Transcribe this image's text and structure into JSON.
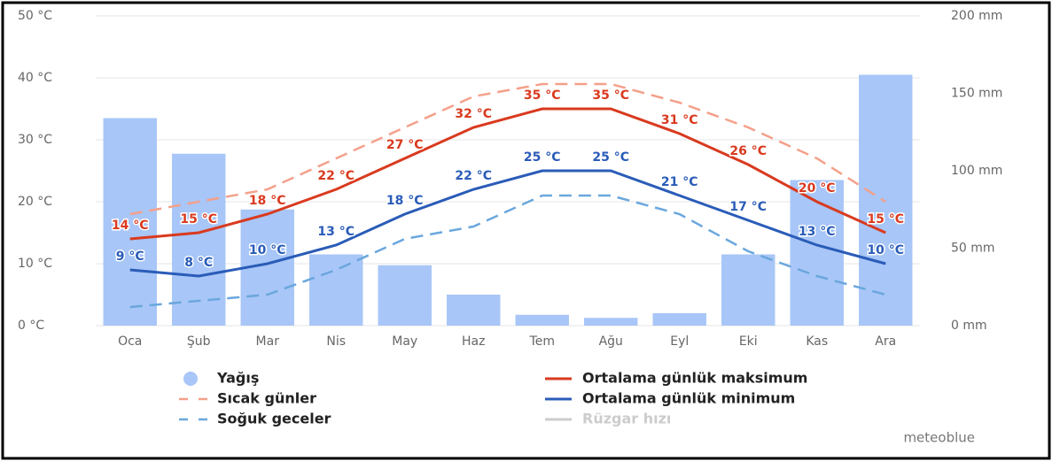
{
  "chart_data": {
    "type": "bar_line",
    "categories": [
      "Oca",
      "Şub",
      "Mar",
      "Nis",
      "May",
      "Haz",
      "Tem",
      "Ağu",
      "Eyl",
      "Eki",
      "Kas",
      "Ara"
    ],
    "ylim": [
      0,
      50
    ],
    "yticks": [
      {
        "value": 0,
        "label": "0 °C"
      },
      {
        "value": 10,
        "label": "10 °C"
      },
      {
        "value": 20,
        "label": "20 °C"
      },
      {
        "value": 30,
        "label": "30 °C"
      },
      {
        "value": 40,
        "label": "40 °C"
      },
      {
        "value": 50,
        "label": "50 °C"
      }
    ],
    "y2lim": [
      0,
      200
    ],
    "y2ticks": [
      {
        "value": 0,
        "label": "0 mm"
      },
      {
        "value": 50,
        "label": "50 mm"
      },
      {
        "value": 100,
        "label": "100 mm"
      },
      {
        "value": 150,
        "label": "150 mm"
      },
      {
        "value": 200,
        "label": "200 mm"
      }
    ],
    "grid": true,
    "series": [
      {
        "name": "Yağış",
        "kind": "bar",
        "axis": "y2",
        "color": "#a8c6f7",
        "values": [
          134,
          111,
          75,
          46,
          39,
          20,
          7,
          5,
          8,
          46,
          94,
          162
        ]
      },
      {
        "name": "Sıcak günler",
        "kind": "dashed",
        "color": "#f4a08a",
        "values": [
          18,
          20,
          22,
          27,
          32,
          37,
          39,
          39,
          36,
          32,
          27,
          20
        ]
      },
      {
        "name": "Soğuk geceler",
        "kind": "dashed",
        "color": "#6aa7dd",
        "values": [
          3,
          4,
          5,
          9,
          14,
          16,
          21,
          21,
          18,
          12,
          8,
          5
        ]
      },
      {
        "name": "Ortalama günlük maksimum",
        "kind": "solid",
        "color": "#d93a1f",
        "values": [
          14,
          15,
          18,
          22,
          27,
          32,
          35,
          35,
          31,
          26,
          20,
          15
        ],
        "value_labels": [
          "14 °C",
          "15 °C",
          "18 °C",
          "22 °C",
          "27 °C",
          "32 °C",
          "35 °C",
          "35 °C",
          "31 °C",
          "26 °C",
          "20 °C",
          "15 °C"
        ]
      },
      {
        "name": "Ortalama günlük minimum",
        "kind": "solid",
        "color": "#2a5cb8",
        "values": [
          9,
          8,
          10,
          13,
          18,
          22,
          25,
          25,
          21,
          17,
          13,
          10
        ],
        "value_labels": [
          "9 °C",
          "8 °C",
          "10 °C",
          "13 °C",
          "18 °C",
          "22 °C",
          "25 °C",
          "25 °C",
          "21 °C",
          "17 °C",
          "13 °C",
          "10 °C"
        ]
      }
    ],
    "inactive_legend": [
      {
        "name": "Rüzgar hızı",
        "color": "#cccccc"
      }
    ],
    "watermark": "meteoblue"
  }
}
